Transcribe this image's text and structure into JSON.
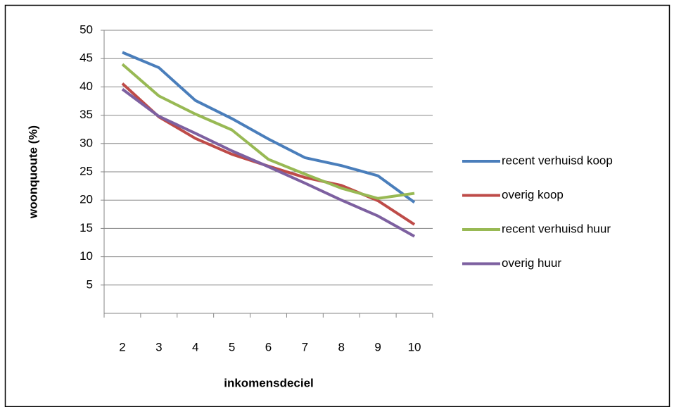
{
  "chart_data": {
    "type": "line",
    "categories": [
      "2",
      "3",
      "4",
      "5",
      "6",
      "7",
      "8",
      "9",
      "10"
    ],
    "series": [
      {
        "name": "recent verhuisd koop",
        "color": "#4a7ebb",
        "values": [
          46.1,
          43.4,
          37.6,
          34.4,
          30.8,
          27.5,
          26.1,
          24.3,
          19.6
        ]
      },
      {
        "name": "overig koop",
        "color": "#be4b48",
        "values": [
          40.6,
          34.7,
          30.9,
          28.1,
          26.0,
          24.0,
          22.6,
          19.9,
          15.7
        ]
      },
      {
        "name": "recent verhuisd huur",
        "color": "#98b954",
        "values": [
          44.0,
          38.4,
          35.2,
          32.4,
          27.2,
          24.6,
          22.1,
          20.3,
          21.2
        ]
      },
      {
        "name": "overig huur",
        "color": "#7d60a0",
        "values": [
          39.6,
          34.8,
          31.8,
          28.7,
          25.9,
          23.0,
          20.0,
          17.2,
          13.6
        ]
      }
    ],
    "xlabel": "inkomensdeciel",
    "ylabel": "woonquoute (%)",
    "ylim": [
      0,
      50
    ],
    "yticks": [
      5,
      10,
      15,
      20,
      25,
      30,
      35,
      40,
      45,
      50
    ],
    "grid": true,
    "legend": "right"
  }
}
